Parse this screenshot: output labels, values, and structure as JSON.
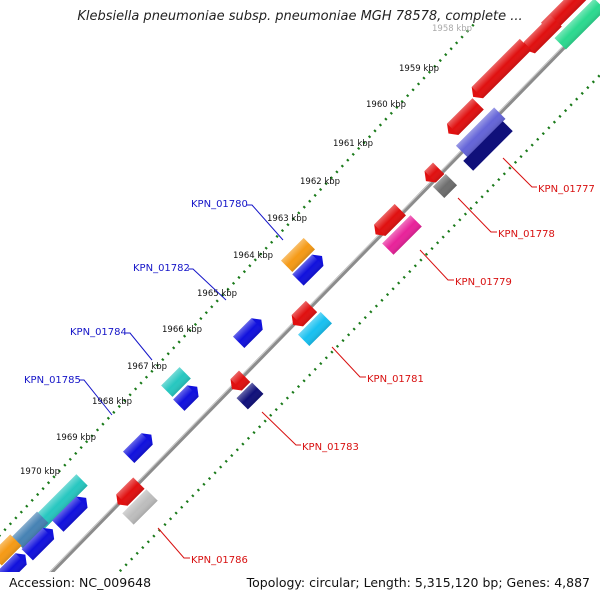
{
  "title": "Klebsiella pneumoniae subsp. pneumoniae MGH 78578, complete ...",
  "footer": {
    "accession": "Accession: NC_009648",
    "topology": "Topology: circular; Length: 5,315,120 bp; Genes: 4,887"
  },
  "ticks": [
    "1958 kbp",
    "1959 kbp",
    "1960 kbp",
    "1961 kbp",
    "1962 kbp",
    "1963 kbp",
    "1964 kbp",
    "1965 kbp",
    "1966 kbp",
    "1967 kbp",
    "1968 kbp",
    "1969 kbp",
    "1970 kbp"
  ],
  "gene_labels_forward": [
    "KPN_01780",
    "KPN_01782",
    "KPN_01784",
    "KPN_01785"
  ],
  "gene_labels_reverse": [
    "KPN_01777",
    "KPN_01778",
    "KPN_01779",
    "KPN_01781",
    "KPN_01783",
    "KPN_01786"
  ],
  "colors": {
    "forward_label": "#1515c8",
    "reverse_label": "#d81010",
    "backbone": "#8c8c8c",
    "tick_dots": "#1a7a1a"
  }
}
